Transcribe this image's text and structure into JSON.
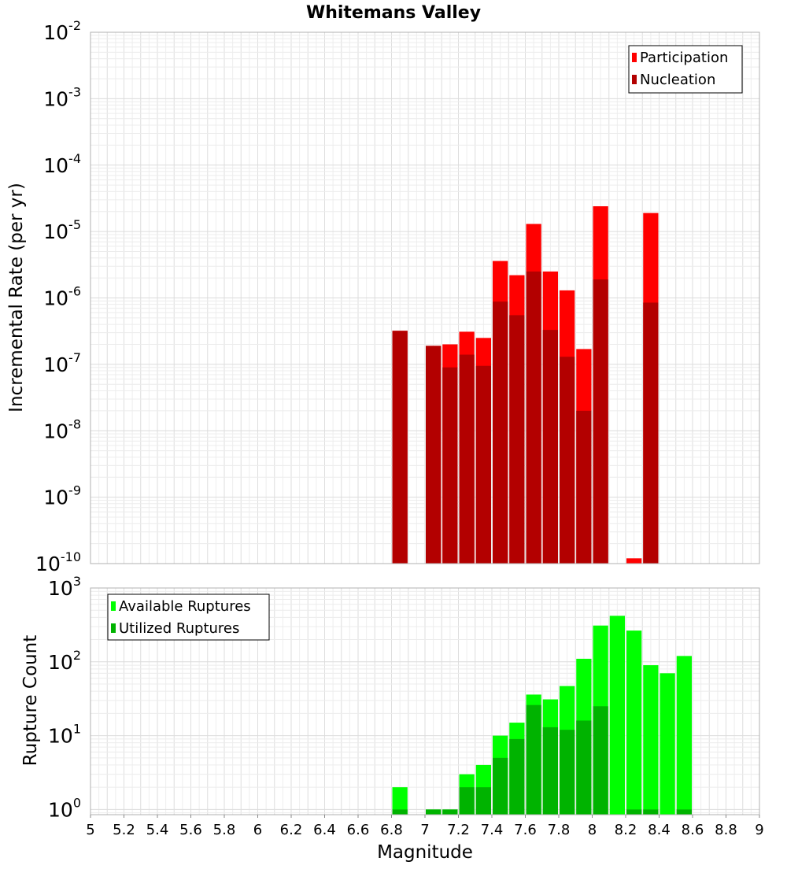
{
  "chart_data": [
    {
      "type": "bar",
      "title": "Whitemans Valley",
      "xlabel": "",
      "ylabel": "Incremental Rate (per yr)",
      "yscale": "log",
      "ylim": [
        1e-10,
        0.01
      ],
      "xlim": [
        5,
        9
      ],
      "y_tick_exponents": [
        -10,
        -9,
        -8,
        -7,
        -6,
        -5,
        -4,
        -3,
        -2
      ],
      "y_tick_base": "10",
      "grid": true,
      "legend_position": "top-right",
      "bar_width": 0.1,
      "series": [
        {
          "name": "Participation",
          "color": "#ff0000",
          "x": [
            6.85,
            7.05,
            7.15,
            7.25,
            7.35,
            7.45,
            7.55,
            7.65,
            7.75,
            7.85,
            7.95,
            8.05,
            8.25,
            8.35
          ],
          "values": [
            3.2e-07,
            1.9e-07,
            2e-07,
            3.1e-07,
            2.5e-07,
            3.6e-06,
            2.2e-06,
            1.3e-05,
            2.5e-06,
            1.3e-06,
            1.7e-07,
            2.4e-05,
            1.2e-10,
            1.9e-05
          ]
        },
        {
          "name": "Nucleation",
          "color": "#b30000",
          "x": [
            6.85,
            7.05,
            7.15,
            7.25,
            7.35,
            7.45,
            7.55,
            7.65,
            7.75,
            7.85,
            7.95,
            8.05,
            8.35
          ],
          "values": [
            3.2e-07,
            1.9e-07,
            9e-08,
            1.4e-07,
            9.5e-08,
            8.8e-07,
            5.5e-07,
            2.5e-06,
            3.3e-07,
            1.3e-07,
            2e-08,
            1.9e-06,
            8.5e-07
          ]
        }
      ]
    },
    {
      "type": "bar",
      "title": "",
      "xlabel": "Magnitude",
      "ylabel": "Rupture Count",
      "yscale": "log",
      "ylim": [
        0.85,
        1000
      ],
      "xlim": [
        5,
        9
      ],
      "y_tick_exponents": [
        0,
        1,
        2,
        3
      ],
      "y_tick_base": "10",
      "x_ticks": [
        "5",
        "5.2",
        "5.4",
        "5.6",
        "5.8",
        "6",
        "6.2",
        "6.4",
        "6.6",
        "6.8",
        "7",
        "7.2",
        "7.4",
        "7.6",
        "7.8",
        "8",
        "8.2",
        "8.4",
        "8.6",
        "8.8",
        "9"
      ],
      "grid": true,
      "legend_position": "top-left",
      "bar_width": 0.1,
      "series": [
        {
          "name": "Available Ruptures",
          "color": "#00ff00",
          "x": [
            6.85,
            7.05,
            7.15,
            7.25,
            7.35,
            7.45,
            7.55,
            7.65,
            7.75,
            7.85,
            7.95,
            8.05,
            8.15,
            8.25,
            8.35,
            8.45,
            8.55
          ],
          "values": [
            2,
            1,
            1,
            3,
            4,
            10,
            15,
            36,
            31,
            47,
            110,
            310,
            420,
            265,
            90,
            70,
            120
          ]
        },
        {
          "name": "Utilized Ruptures",
          "color": "#00b300",
          "x": [
            6.85,
            7.05,
            7.15,
            7.25,
            7.35,
            7.45,
            7.55,
            7.65,
            7.75,
            7.85,
            7.95,
            8.05,
            8.25,
            8.35,
            8.55
          ],
          "values": [
            1,
            1,
            1,
            2,
            2,
            5,
            9,
            26,
            13,
            12,
            16,
            25,
            1,
            1,
            1
          ]
        }
      ]
    }
  ]
}
